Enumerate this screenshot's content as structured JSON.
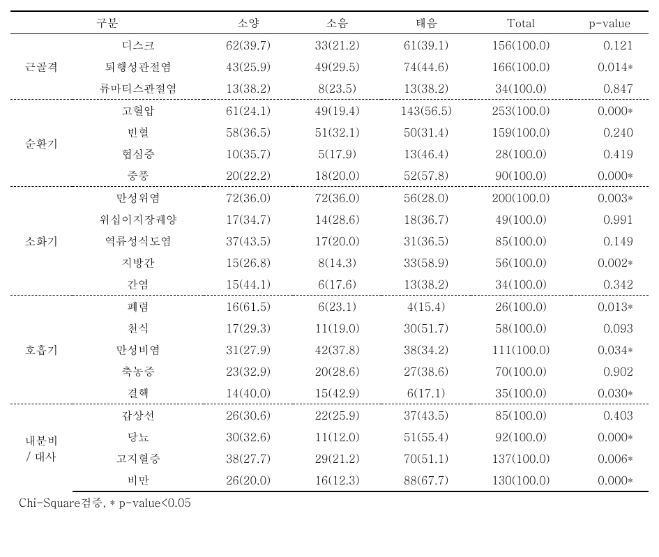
{
  "header": {
    "category_label": "구분",
    "col1": "소양",
    "col2": "소음",
    "col3": "태음",
    "total": "Total",
    "pvalue": "p-value"
  },
  "groups": [
    {
      "name": "근골격",
      "rows": [
        {
          "subcat": "디스크",
          "c1": "62(39.7)",
          "c2": "33(21.2)",
          "c3": "61(39.1)",
          "total": "156(100.0)",
          "p": "0.121"
        },
        {
          "subcat": "퇴행성관절염",
          "c1": "43(25.9)",
          "c2": "49(29.5)",
          "c3": "74(44.6)",
          "total": "166(100.0)",
          "p": "0.014*"
        },
        {
          "subcat": "류마티스관절염",
          "c1": "13(38.2)",
          "c2": "8(23.5)",
          "c3": "13(38.2)",
          "total": "34(100.0)",
          "p": "0.847"
        }
      ]
    },
    {
      "name": "순환기",
      "rows": [
        {
          "subcat": "고혈압",
          "c1": "61(24.1)",
          "c2": "49(19.4)",
          "c3": "143(56.5)",
          "total": "253(100.0)",
          "p": "0.000*"
        },
        {
          "subcat": "빈혈",
          "c1": "58(36.5)",
          "c2": "51(32.1)",
          "c3": "50(31.4)",
          "total": "159(100.0)",
          "p": "0.240"
        },
        {
          "subcat": "협심증",
          "c1": "10(35.7)",
          "c2": "5(17.9)",
          "c3": "13(46.4)",
          "total": "28(100.0)",
          "p": "0.419"
        },
        {
          "subcat": "중풍",
          "c1": "20(22.2)",
          "c2": "18(20.0)",
          "c3": "52(57.8)",
          "total": "90(100.0)",
          "p": "0.000*"
        }
      ]
    },
    {
      "name": "소화기",
      "rows": [
        {
          "subcat": "만성위염",
          "c1": "72(36.0)",
          "c2": "72(36.0)",
          "c3": "56(28.0)",
          "total": "200(100.0)",
          "p": "0.003*"
        },
        {
          "subcat": "위십이지장궤양",
          "c1": "17(34.7)",
          "c2": "14(28.6)",
          "c3": "18(36.7)",
          "total": "49(100.0)",
          "p": "0.991"
        },
        {
          "subcat": "역류성식도염",
          "c1": "37(43.5)",
          "c2": "17(20.0)",
          "c3": "31(36.5)",
          "total": "85(100.0)",
          "p": "0.149"
        },
        {
          "subcat": "지방간",
          "c1": "15(26.8)",
          "c2": "8(14.3)",
          "c3": "33(58.9)",
          "total": "56(100.0)",
          "p": "0.002*"
        },
        {
          "subcat": "간염",
          "c1": "15(44.1)",
          "c2": "6(17.6)",
          "c3": "13(38.2)",
          "total": "34(100.0)",
          "p": "0.342"
        }
      ]
    },
    {
      "name": "호흡기",
      "rows": [
        {
          "subcat": "폐렴",
          "c1": "16(61.5)",
          "c2": "6(23.1)",
          "c3": "4(15.4)",
          "total": "26(100.0)",
          "p": "0.013*"
        },
        {
          "subcat": "천식",
          "c1": "17(29.3)",
          "c2": "11(19.0)",
          "c3": "30(51.7)",
          "total": "58(100.0)",
          "p": "0.093"
        },
        {
          "subcat": "만성비염",
          "c1": "31(27.9)",
          "c2": "42(37.8)",
          "c3": "38(34.2)",
          "total": "111(100.0)",
          "p": "0.034*"
        },
        {
          "subcat": "축농증",
          "c1": "23(32.9)",
          "c2": "20(28.6)",
          "c3": "27(38.6)",
          "total": "70(100.0)",
          "p": "0.902"
        },
        {
          "subcat": "결핵",
          "c1": "14(40.0)",
          "c2": "15(42.9)",
          "c3": "6(17.1)",
          "total": "35(100.0)",
          "p": "0.030*"
        }
      ]
    },
    {
      "name_line1": "내분비",
      "name_line2": "/  대사",
      "rows": [
        {
          "subcat": "갑상선",
          "c1": "26(30.6)",
          "c2": "22(25.9)",
          "c3": "37(43.5)",
          "total": "85(100.0)",
          "p": "0.403"
        },
        {
          "subcat": "당뇨",
          "c1": "30(32.6)",
          "c2": "11(12.0)",
          "c3": "51(55.4)",
          "total": "92(100.0)",
          "p": "0.000*"
        },
        {
          "subcat": "고지혈증",
          "c1": "38(27.7)",
          "c2": "29(21.2)",
          "c3": "70(51.1)",
          "total": "137(100.0)",
          "p": "0.006*"
        },
        {
          "subcat": "비만",
          "c1": "26(20.0)",
          "c2": "16(12.3)",
          "c3": "88(67.7)",
          "total": "130(100.0)",
          "p": "0.000*"
        }
      ]
    }
  ],
  "footnote": "Chi-Square검증, * p-value<0.05"
}
